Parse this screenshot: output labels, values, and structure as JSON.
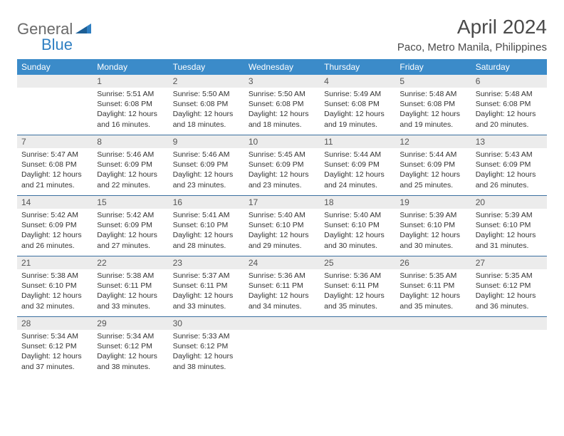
{
  "brand": {
    "part1": "General",
    "part2": "Blue"
  },
  "title": "April 2024",
  "location": "Paco, Metro Manila, Philippines",
  "colors": {
    "header_bg": "#3b8bc9",
    "header_text": "#ffffff",
    "daynum_bg": "#ececec",
    "daynum_text": "#555555",
    "body_text": "#333333",
    "rule": "#3b6fa0",
    "logo_gray": "#6a6a6a",
    "logo_blue": "#2f7fc2"
  },
  "day_names": [
    "Sunday",
    "Monday",
    "Tuesday",
    "Wednesday",
    "Thursday",
    "Friday",
    "Saturday"
  ],
  "weeks": [
    [
      {
        "n": "",
        "sr": "",
        "ss": "",
        "dl": ""
      },
      {
        "n": "1",
        "sr": "Sunrise: 5:51 AM",
        "ss": "Sunset: 6:08 PM",
        "dl": "Daylight: 12 hours and 16 minutes."
      },
      {
        "n": "2",
        "sr": "Sunrise: 5:50 AM",
        "ss": "Sunset: 6:08 PM",
        "dl": "Daylight: 12 hours and 18 minutes."
      },
      {
        "n": "3",
        "sr": "Sunrise: 5:50 AM",
        "ss": "Sunset: 6:08 PM",
        "dl": "Daylight: 12 hours and 18 minutes."
      },
      {
        "n": "4",
        "sr": "Sunrise: 5:49 AM",
        "ss": "Sunset: 6:08 PM",
        "dl": "Daylight: 12 hours and 19 minutes."
      },
      {
        "n": "5",
        "sr": "Sunrise: 5:48 AM",
        "ss": "Sunset: 6:08 PM",
        "dl": "Daylight: 12 hours and 19 minutes."
      },
      {
        "n": "6",
        "sr": "Sunrise: 5:48 AM",
        "ss": "Sunset: 6:08 PM",
        "dl": "Daylight: 12 hours and 20 minutes."
      }
    ],
    [
      {
        "n": "7",
        "sr": "Sunrise: 5:47 AM",
        "ss": "Sunset: 6:08 PM",
        "dl": "Daylight: 12 hours and 21 minutes."
      },
      {
        "n": "8",
        "sr": "Sunrise: 5:46 AM",
        "ss": "Sunset: 6:09 PM",
        "dl": "Daylight: 12 hours and 22 minutes."
      },
      {
        "n": "9",
        "sr": "Sunrise: 5:46 AM",
        "ss": "Sunset: 6:09 PM",
        "dl": "Daylight: 12 hours and 23 minutes."
      },
      {
        "n": "10",
        "sr": "Sunrise: 5:45 AM",
        "ss": "Sunset: 6:09 PM",
        "dl": "Daylight: 12 hours and 23 minutes."
      },
      {
        "n": "11",
        "sr": "Sunrise: 5:44 AM",
        "ss": "Sunset: 6:09 PM",
        "dl": "Daylight: 12 hours and 24 minutes."
      },
      {
        "n": "12",
        "sr": "Sunrise: 5:44 AM",
        "ss": "Sunset: 6:09 PM",
        "dl": "Daylight: 12 hours and 25 minutes."
      },
      {
        "n": "13",
        "sr": "Sunrise: 5:43 AM",
        "ss": "Sunset: 6:09 PM",
        "dl": "Daylight: 12 hours and 26 minutes."
      }
    ],
    [
      {
        "n": "14",
        "sr": "Sunrise: 5:42 AM",
        "ss": "Sunset: 6:09 PM",
        "dl": "Daylight: 12 hours and 26 minutes."
      },
      {
        "n": "15",
        "sr": "Sunrise: 5:42 AM",
        "ss": "Sunset: 6:09 PM",
        "dl": "Daylight: 12 hours and 27 minutes."
      },
      {
        "n": "16",
        "sr": "Sunrise: 5:41 AM",
        "ss": "Sunset: 6:10 PM",
        "dl": "Daylight: 12 hours and 28 minutes."
      },
      {
        "n": "17",
        "sr": "Sunrise: 5:40 AM",
        "ss": "Sunset: 6:10 PM",
        "dl": "Daylight: 12 hours and 29 minutes."
      },
      {
        "n": "18",
        "sr": "Sunrise: 5:40 AM",
        "ss": "Sunset: 6:10 PM",
        "dl": "Daylight: 12 hours and 30 minutes."
      },
      {
        "n": "19",
        "sr": "Sunrise: 5:39 AM",
        "ss": "Sunset: 6:10 PM",
        "dl": "Daylight: 12 hours and 30 minutes."
      },
      {
        "n": "20",
        "sr": "Sunrise: 5:39 AM",
        "ss": "Sunset: 6:10 PM",
        "dl": "Daylight: 12 hours and 31 minutes."
      }
    ],
    [
      {
        "n": "21",
        "sr": "Sunrise: 5:38 AM",
        "ss": "Sunset: 6:10 PM",
        "dl": "Daylight: 12 hours and 32 minutes."
      },
      {
        "n": "22",
        "sr": "Sunrise: 5:38 AM",
        "ss": "Sunset: 6:11 PM",
        "dl": "Daylight: 12 hours and 33 minutes."
      },
      {
        "n": "23",
        "sr": "Sunrise: 5:37 AM",
        "ss": "Sunset: 6:11 PM",
        "dl": "Daylight: 12 hours and 33 minutes."
      },
      {
        "n": "24",
        "sr": "Sunrise: 5:36 AM",
        "ss": "Sunset: 6:11 PM",
        "dl": "Daylight: 12 hours and 34 minutes."
      },
      {
        "n": "25",
        "sr": "Sunrise: 5:36 AM",
        "ss": "Sunset: 6:11 PM",
        "dl": "Daylight: 12 hours and 35 minutes."
      },
      {
        "n": "26",
        "sr": "Sunrise: 5:35 AM",
        "ss": "Sunset: 6:11 PM",
        "dl": "Daylight: 12 hours and 35 minutes."
      },
      {
        "n": "27",
        "sr": "Sunrise: 5:35 AM",
        "ss": "Sunset: 6:12 PM",
        "dl": "Daylight: 12 hours and 36 minutes."
      }
    ],
    [
      {
        "n": "28",
        "sr": "Sunrise: 5:34 AM",
        "ss": "Sunset: 6:12 PM",
        "dl": "Daylight: 12 hours and 37 minutes."
      },
      {
        "n": "29",
        "sr": "Sunrise: 5:34 AM",
        "ss": "Sunset: 6:12 PM",
        "dl": "Daylight: 12 hours and 38 minutes."
      },
      {
        "n": "30",
        "sr": "Sunrise: 5:33 AM",
        "ss": "Sunset: 6:12 PM",
        "dl": "Daylight: 12 hours and 38 minutes."
      },
      {
        "n": "",
        "sr": "",
        "ss": "",
        "dl": ""
      },
      {
        "n": "",
        "sr": "",
        "ss": "",
        "dl": ""
      },
      {
        "n": "",
        "sr": "",
        "ss": "",
        "dl": ""
      },
      {
        "n": "",
        "sr": "",
        "ss": "",
        "dl": ""
      }
    ]
  ]
}
